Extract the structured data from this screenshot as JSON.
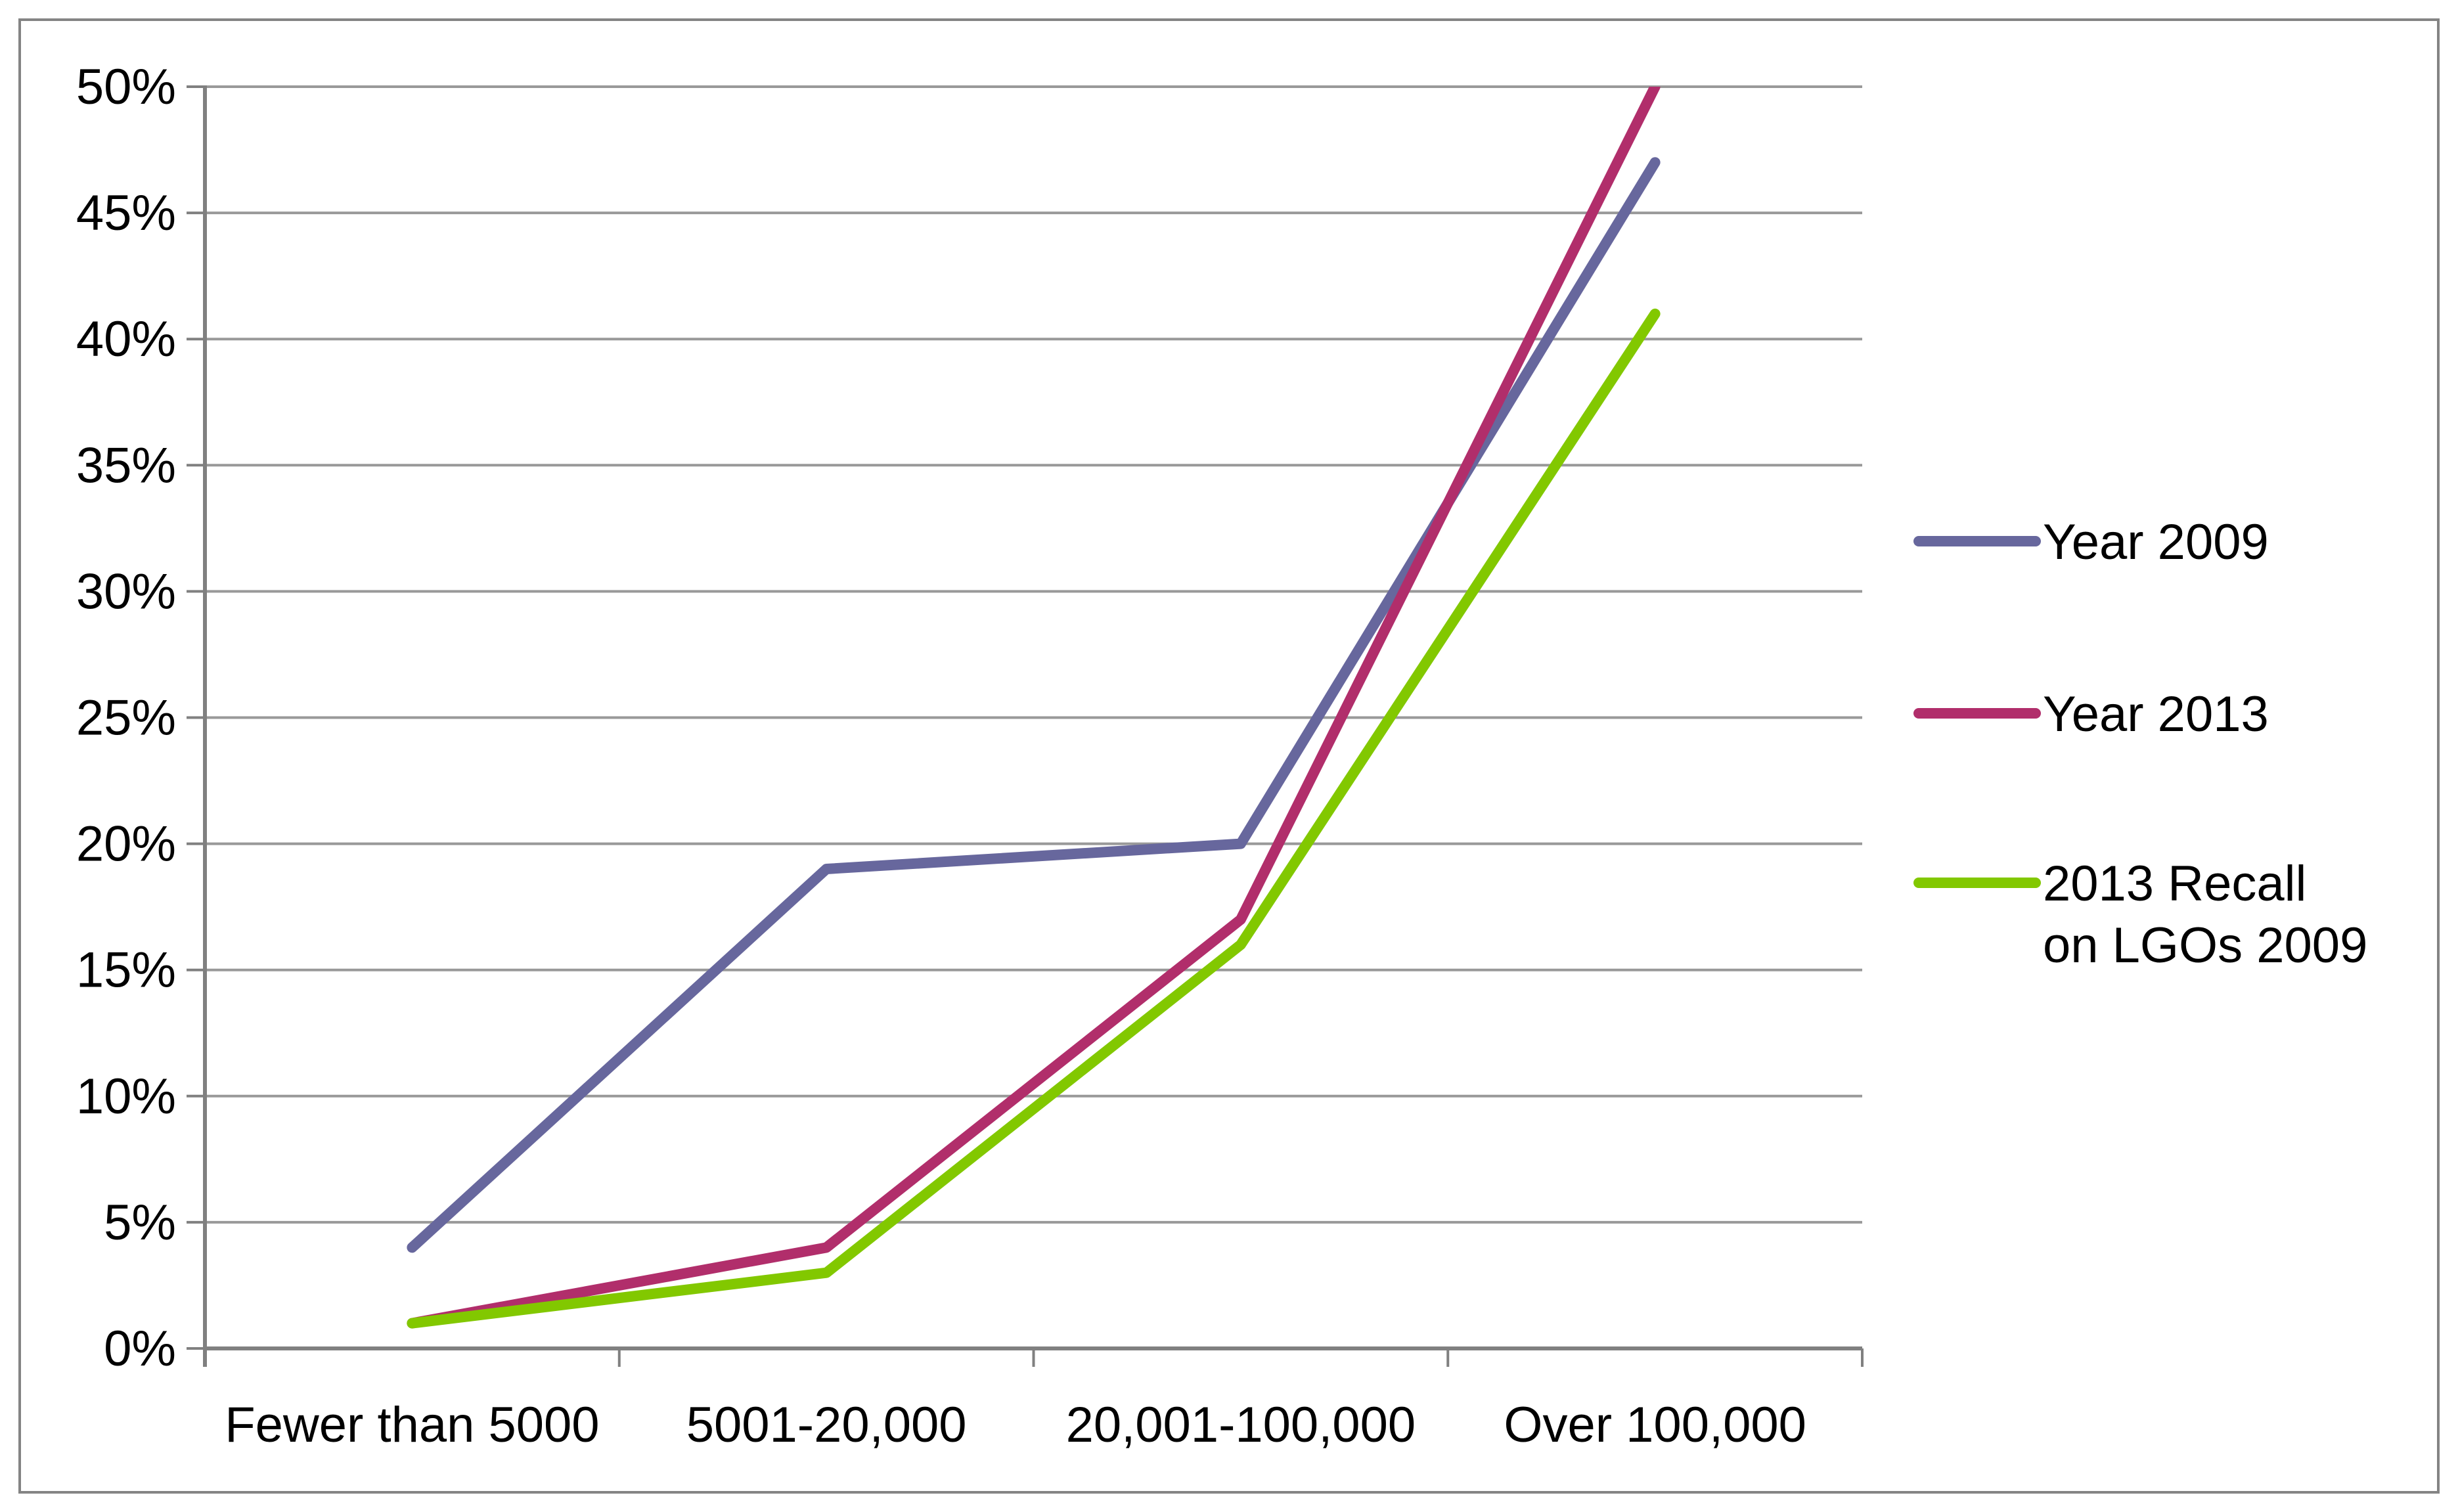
{
  "chart_data": {
    "type": "line",
    "title": "",
    "xlabel": "",
    "ylabel": "",
    "categories": [
      "Fewer than 5000",
      "5001-20,000",
      "20,001-100,000",
      "Over 100,000"
    ],
    "series": [
      {
        "name": "Year 2009",
        "color": "#67679D",
        "values": [
          4,
          19,
          20,
          47
        ]
      },
      {
        "name": "Year 2013",
        "color": "#B12E6B",
        "values": [
          1,
          4,
          17,
          50
        ]
      },
      {
        "name": "2013 Recall on LGOs 2009",
        "color": "#82C800",
        "values": [
          1,
          3,
          16,
          41
        ]
      }
    ],
    "ylim": [
      0,
      50
    ],
    "ytick_step": 5,
    "ytick_labels": [
      "0%",
      "5%",
      "10%",
      "15%",
      "20%",
      "25%",
      "30%",
      "35%",
      "40%",
      "45%",
      "50%"
    ],
    "grid": true,
    "legend_position": "right",
    "legend": {
      "entry1": "Year 2009",
      "entry2": "Year 2013",
      "entry3_line1": "2013 Recall",
      "entry3_line2": "on LGOs 2009"
    },
    "colors": {
      "background": "#FFFFFF",
      "border": "#848484",
      "axis": "#808080",
      "gridline": "#999999",
      "text": "#000000"
    }
  }
}
